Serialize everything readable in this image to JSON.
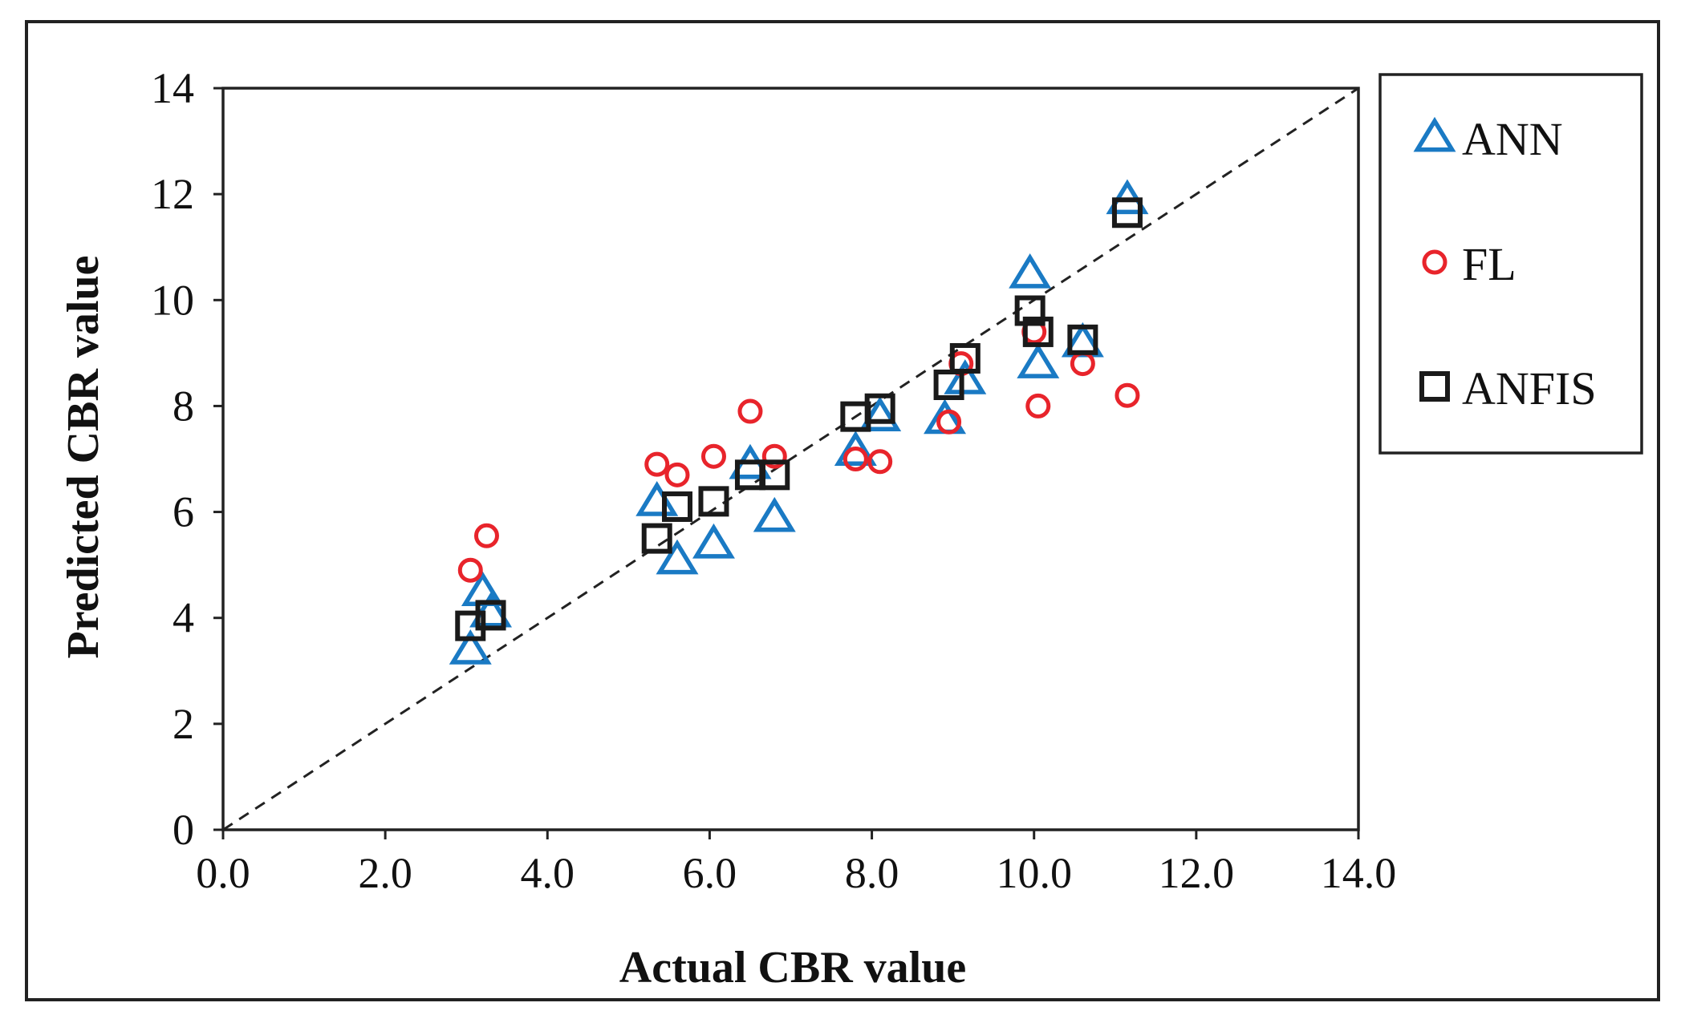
{
  "chart_data": {
    "type": "scatter",
    "title": "",
    "xlabel": "Actual CBR value",
    "ylabel": "Predicted CBR value",
    "xlim": [
      0,
      14
    ],
    "ylim": [
      0,
      14
    ],
    "x_ticks": [
      "0.0",
      "2.0",
      "4.0",
      "6.0",
      "8.0",
      "10.0",
      "12.0",
      "14.0"
    ],
    "y_ticks": [
      "0",
      "2",
      "4",
      "6",
      "8",
      "10",
      "12",
      "14"
    ],
    "grid": false,
    "legend_position": "right",
    "reference_line": {
      "style": "dashed",
      "from": [
        0,
        0
      ],
      "to": [
        14,
        14
      ]
    },
    "series": [
      {
        "name": "ANN",
        "marker": "triangle",
        "color": "#1a7ac4",
        "points": [
          [
            3.05,
            3.4
          ],
          [
            3.2,
            4.5
          ],
          [
            3.3,
            4.1
          ],
          [
            5.35,
            6.2
          ],
          [
            5.6,
            5.1
          ],
          [
            6.05,
            5.4
          ],
          [
            6.5,
            6.9
          ],
          [
            6.8,
            5.9
          ],
          [
            7.8,
            7.15
          ],
          [
            8.1,
            7.8
          ],
          [
            8.9,
            7.75
          ],
          [
            9.15,
            8.5
          ],
          [
            9.95,
            10.5
          ],
          [
            10.05,
            8.8
          ],
          [
            10.6,
            9.2
          ],
          [
            11.15,
            11.9
          ]
        ]
      },
      {
        "name": "FL",
        "marker": "circle",
        "color": "#e8242b",
        "points": [
          [
            3.05,
            4.9
          ],
          [
            3.25,
            5.55
          ],
          [
            5.35,
            6.9
          ],
          [
            5.6,
            6.7
          ],
          [
            6.05,
            7.05
          ],
          [
            6.5,
            7.9
          ],
          [
            6.8,
            7.05
          ],
          [
            7.8,
            7.0
          ],
          [
            8.1,
            6.95
          ],
          [
            8.95,
            7.7
          ],
          [
            9.1,
            8.8
          ],
          [
            10.0,
            9.4
          ],
          [
            10.05,
            8.0
          ],
          [
            10.6,
            8.8
          ],
          [
            11.15,
            8.2
          ]
        ]
      },
      {
        "name": "ANFIS",
        "marker": "square",
        "color": "#1a1a1a",
        "points": [
          [
            3.05,
            3.85
          ],
          [
            3.3,
            4.05
          ],
          [
            5.35,
            5.5
          ],
          [
            5.6,
            6.1
          ],
          [
            6.05,
            6.2
          ],
          [
            6.5,
            6.7
          ],
          [
            6.8,
            6.7
          ],
          [
            7.8,
            7.8
          ],
          [
            8.1,
            7.95
          ],
          [
            8.95,
            8.4
          ],
          [
            9.15,
            8.9
          ],
          [
            9.95,
            9.8
          ],
          [
            10.05,
            9.4
          ],
          [
            10.6,
            9.25
          ],
          [
            11.15,
            11.65
          ]
        ]
      }
    ]
  }
}
